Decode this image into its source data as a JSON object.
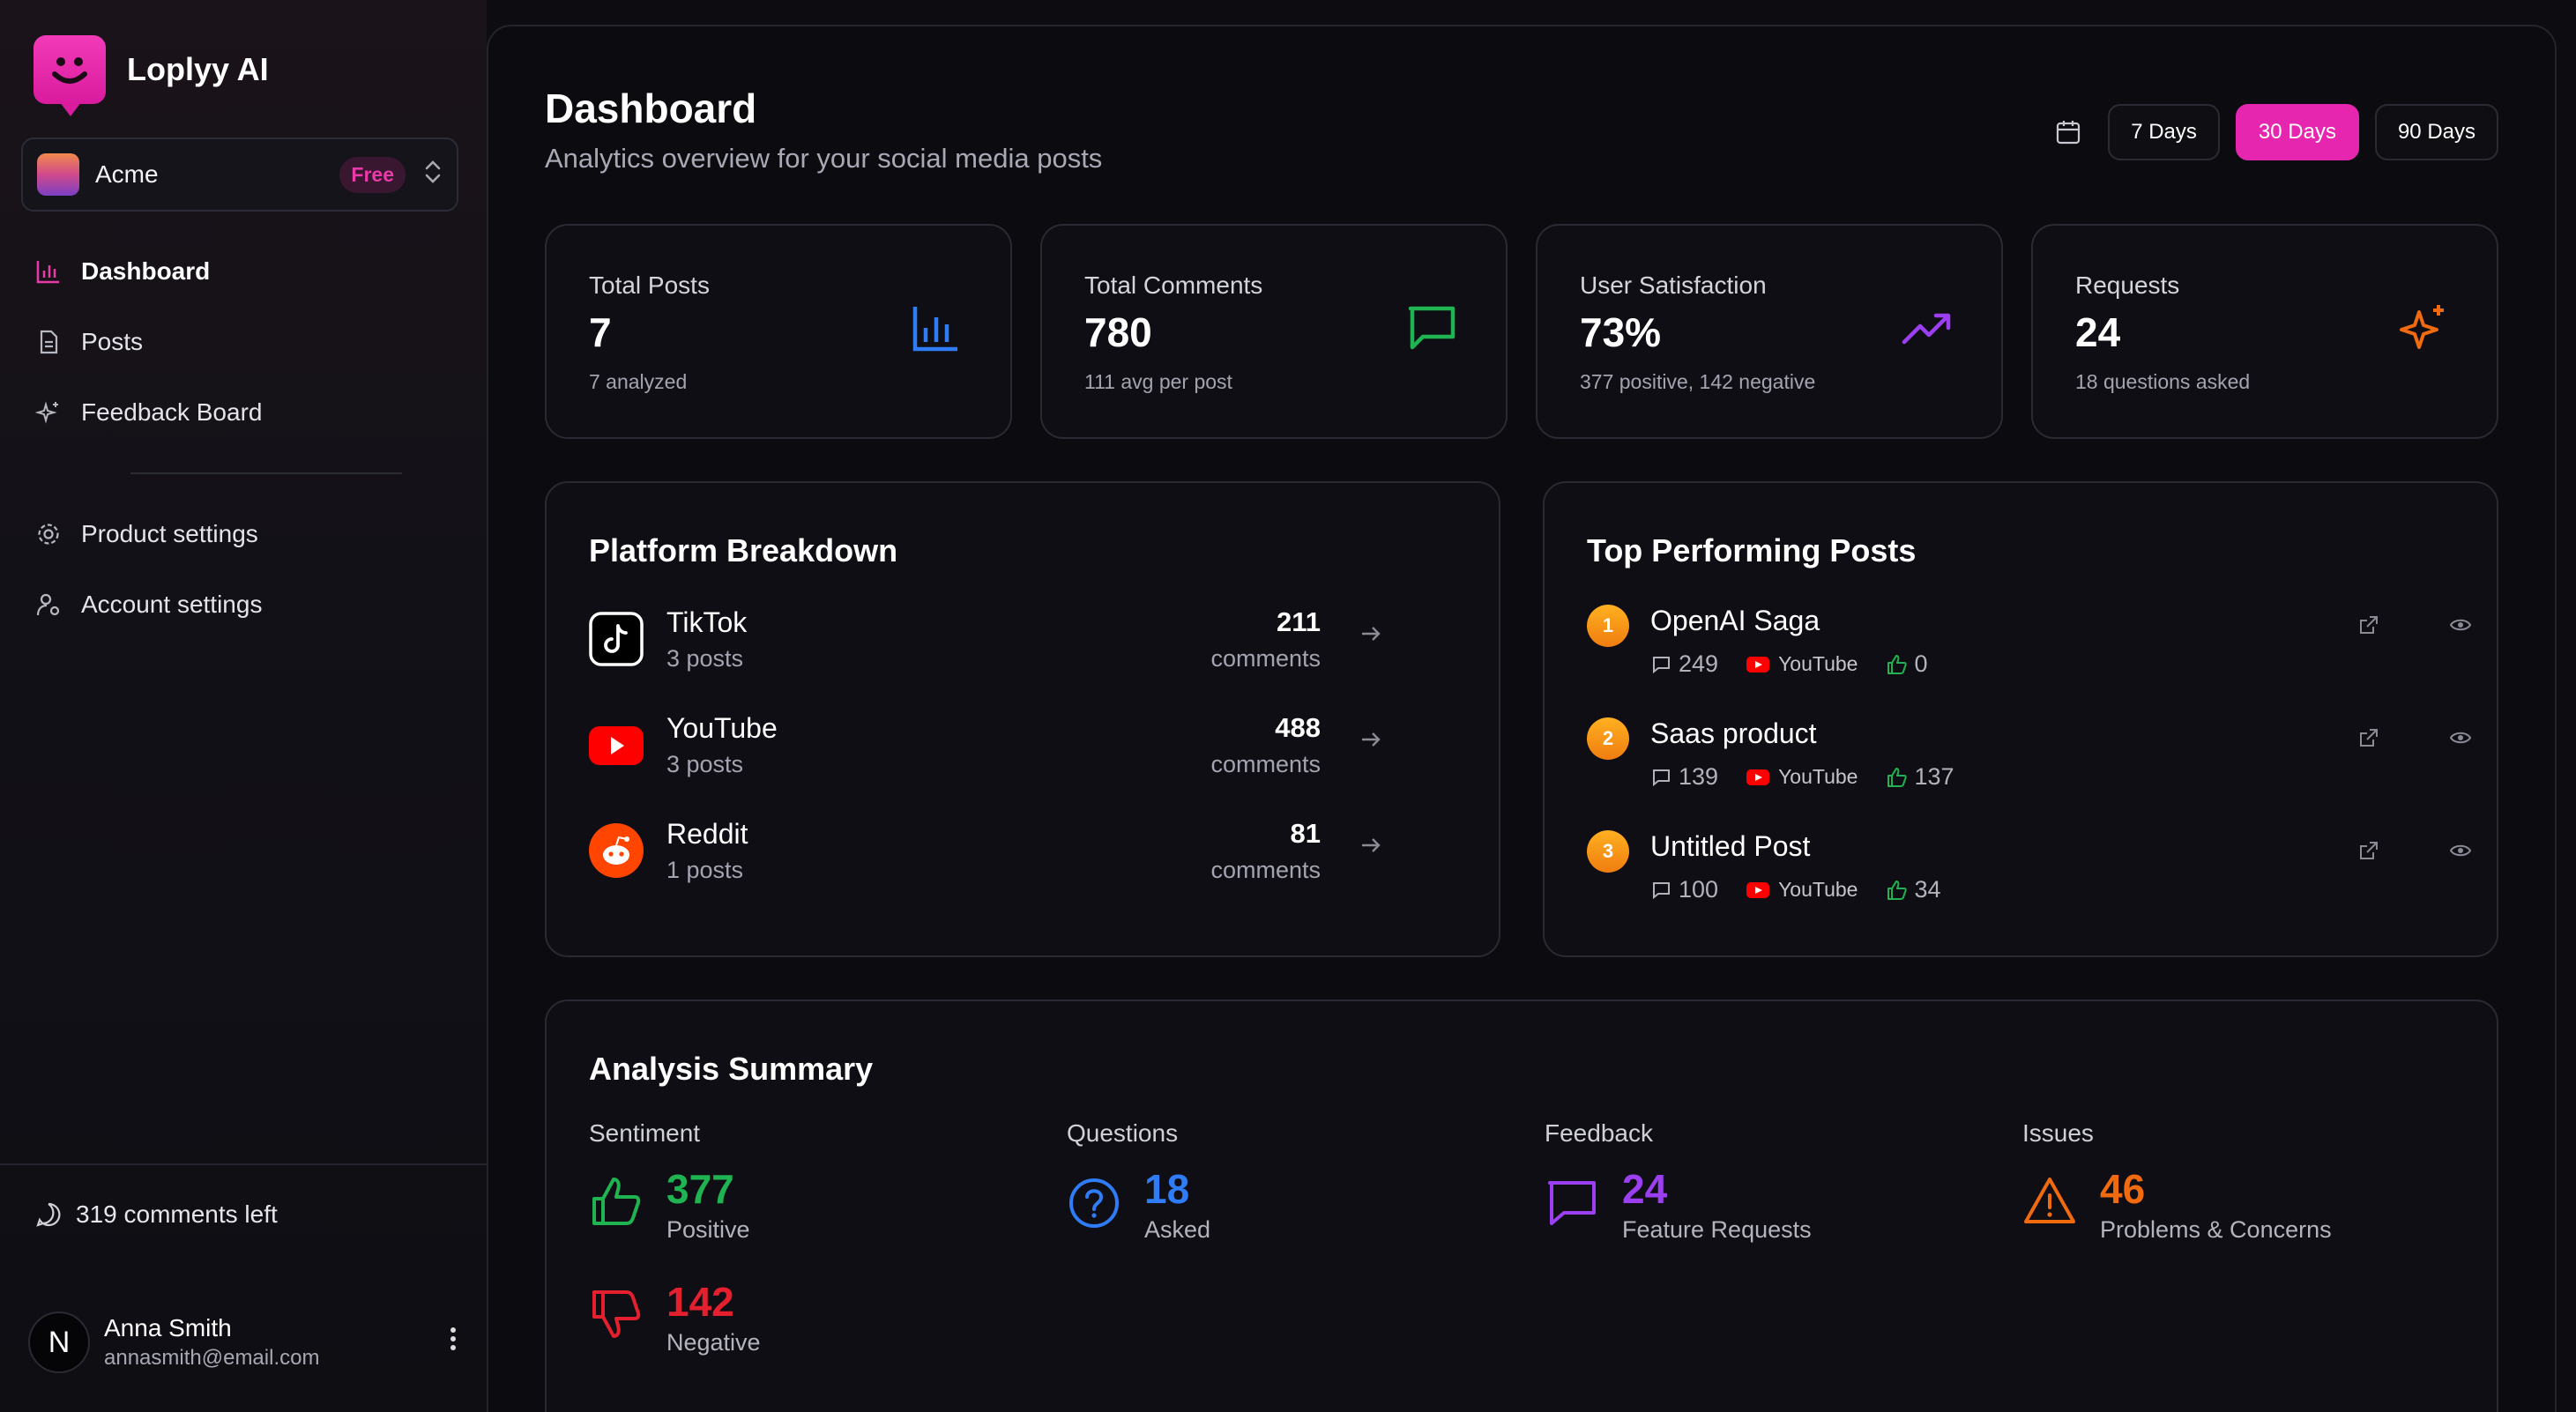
{
  "app": {
    "name": "Loplyy AI",
    "brand_color": "#e626ae"
  },
  "workspace": {
    "name": "Acme",
    "plan": "Free"
  },
  "nav": {
    "items": [
      {
        "label": "Dashboard",
        "icon": "bar-chart-icon",
        "active": true
      },
      {
        "label": "Posts",
        "icon": "document-icon"
      },
      {
        "label": "Feedback Board",
        "icon": "sparkle-icon"
      }
    ],
    "settings": [
      {
        "label": "Product settings",
        "icon": "gear-icon"
      },
      {
        "label": "Account settings",
        "icon": "user-gear-icon"
      }
    ]
  },
  "sidebar_footer": {
    "comments_left": "319 comments left"
  },
  "user": {
    "initial": "N",
    "name": "Anna Smith",
    "email": "annasmith@email.com"
  },
  "header": {
    "title": "Dashboard",
    "subtitle": "Analytics overview for your social media posts",
    "ranges": [
      "7 Days",
      "30 Days",
      "90 Days"
    ],
    "active_range": "30 Days"
  },
  "stats": [
    {
      "label": "Total Posts",
      "value": "7",
      "sub": "7 analyzed",
      "icon": "bar-chart-icon",
      "color": "#2f7cf6"
    },
    {
      "label": "Total Comments",
      "value": "780",
      "sub": "111 avg per post",
      "icon": "message-icon",
      "color": "#1fb451"
    },
    {
      "label": "User Satisfaction",
      "value": "73%",
      "sub": "377 positive, 142 negative",
      "icon": "trending-up-icon",
      "color": "#9b3ff0"
    },
    {
      "label": "Requests",
      "value": "24",
      "sub": "18 questions asked",
      "icon": "sparkle-icon",
      "color": "#f06a10"
    }
  ],
  "platform_breakdown": {
    "title": "Platform Breakdown",
    "rows": [
      {
        "name": "TikTok",
        "posts": "3 posts",
        "count": "211",
        "unit": "comments",
        "icon": "tiktok-icon"
      },
      {
        "name": "YouTube",
        "posts": "3 posts",
        "count": "488",
        "unit": "comments",
        "icon": "youtube-icon"
      },
      {
        "name": "Reddit",
        "posts": "1 posts",
        "count": "81",
        "unit": "comments",
        "icon": "reddit-icon"
      }
    ]
  },
  "top_posts": {
    "title": "Top Performing Posts",
    "rows": [
      {
        "rank": "1",
        "title": "OpenAI Saga",
        "comments": "249",
        "platform": "YouTube",
        "likes": "0"
      },
      {
        "rank": "2",
        "title": "Saas product",
        "comments": "139",
        "platform": "YouTube",
        "likes": "137"
      },
      {
        "rank": "3",
        "title": "Untitled Post",
        "comments": "100",
        "platform": "YouTube",
        "likes": "34"
      }
    ]
  },
  "analysis": {
    "title": "Analysis Summary",
    "columns": [
      {
        "heading": "Sentiment",
        "entries": [
          {
            "value": "377",
            "label": "Positive",
            "color": "#1fb451",
            "icon": "thumbs-up-icon"
          },
          {
            "value": "142",
            "label": "Negative",
            "color": "#e5202e",
            "icon": "thumbs-down-icon"
          }
        ]
      },
      {
        "heading": "Questions",
        "entries": [
          {
            "value": "18",
            "label": "Asked",
            "color": "#2f7cf6",
            "icon": "question-circle-icon"
          }
        ]
      },
      {
        "heading": "Feedback",
        "entries": [
          {
            "value": "24",
            "label": "Feature Requests",
            "color": "#9b3ff0",
            "icon": "message-icon"
          }
        ]
      },
      {
        "heading": "Issues",
        "entries": [
          {
            "value": "46",
            "label": "Problems & Concerns",
            "color": "#f06a10",
            "icon": "warning-icon"
          }
        ]
      }
    ]
  }
}
